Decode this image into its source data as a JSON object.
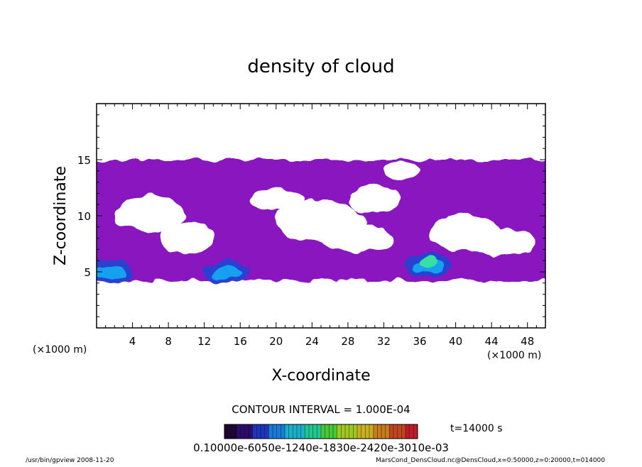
{
  "chart_data": {
    "type": "heatmap",
    "title": "density of cloud",
    "xlabel": "X-coordinate",
    "ylabel": "Z-coordinate",
    "x_unit_left": "(×1000 m)",
    "x_unit_right": "(×1000 m)",
    "xlim": [
      0,
      50
    ],
    "ylim": [
      0,
      20
    ],
    "x_ticks": [
      4,
      8,
      12,
      16,
      20,
      24,
      28,
      32,
      36,
      40,
      44,
      48
    ],
    "y_ticks": [
      5,
      10,
      15
    ],
    "contour_interval": "CONTOUR INTERVAL = 1.000E-04",
    "time_label": "t=14000 s",
    "colorbar_labels": "0.10000e-6050e-1240e-1830e-2420e-3010e-03",
    "colorbar_min": 0.0001,
    "colorbar_max": 0.0011,
    "footer_left": "/usr/bin/gpview  2008-11-20",
    "footer_right": "MarsCond_DensCloud.nc@DensCloud,x=0:50000,z=0:20000,t=014000",
    "cloud_layer": {
      "z_bottom_km": 4.2,
      "z_top_km": 15.0,
      "base_level": 0.0001,
      "dense_regions": [
        {
          "x_center_km": 1.5,
          "z_center_km": 5.0,
          "peak": 0.0005
        },
        {
          "x_center_km": 14.5,
          "z_center_km": 5.0,
          "peak": 0.0007
        },
        {
          "x_center_km": 37.0,
          "z_center_km": 5.6,
          "peak": 0.0011
        }
      ]
    },
    "colors": {
      "base": "#8a14c0",
      "mid": "#2c3fd0",
      "high": "#16a0f0",
      "peak": "#36e0a0"
    }
  }
}
